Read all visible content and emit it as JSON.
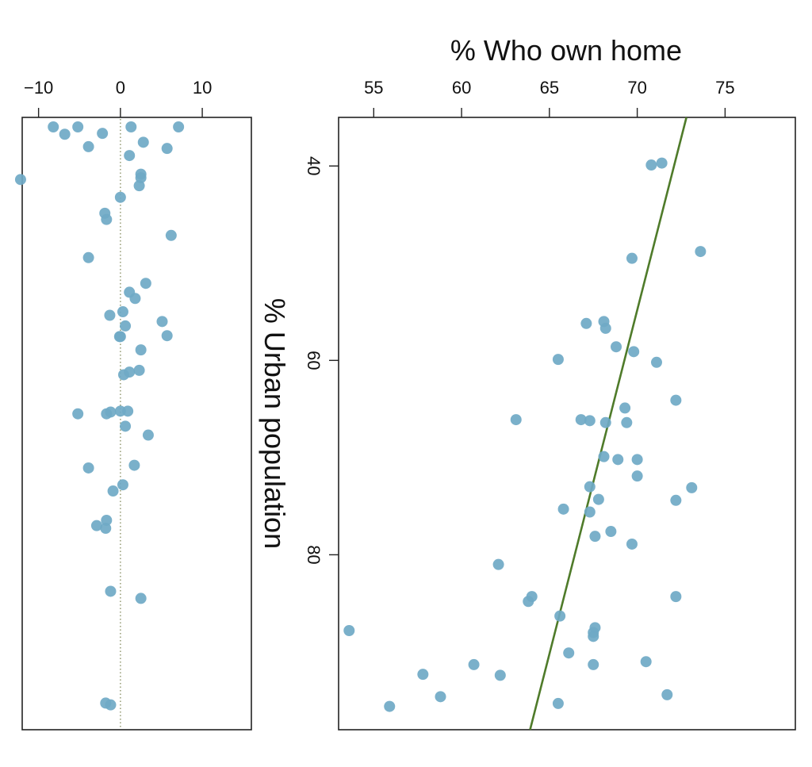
{
  "chart_data": [
    {
      "type": "scatter",
      "title": "",
      "xlabel": "",
      "ylabel": "",
      "xlim": [
        -12,
        16
      ],
      "ylim": [
        103,
        34
      ],
      "xticks": [
        "−10",
        "0",
        "10"
      ],
      "xtick_values": [
        -10,
        0,
        10
      ],
      "reference_line": {
        "value": 0,
        "style": "dotted",
        "color": "#9aa07a"
      },
      "point_color": "#6fa9c5",
      "x": [
        -1.2,
        -1.8,
        2.5,
        -1.2,
        -1.8,
        -2.9,
        -1.7,
        -0.9,
        0.3,
        -3.9,
        1.7,
        3.4,
        0.6,
        -5.2,
        -1.7,
        -1.2,
        0.0,
        0.9,
        0.4,
        1.1,
        2.3,
        2.5,
        -0.1,
        0.0,
        5.7,
        0.6,
        5.1,
        -1.3,
        0.3,
        1.8,
        1.1,
        3.1,
        -3.9,
        6.2,
        -1.7,
        -1.9,
        0.0,
        2.3,
        2.5,
        2.5,
        -12.2,
        1.1,
        5.7,
        -3.9,
        2.8,
        -6.8,
        -2.2,
        7.1,
        -5.2,
        1.3,
        -8.2
      ],
      "y": [
        36.8,
        37.0,
        48.8,
        49.6,
        56.7,
        57.0,
        57.6,
        60.9,
        61.6,
        63.5,
        63.8,
        67.2,
        68.2,
        69.6,
        69.6,
        69.8,
        69.9,
        69.9,
        74.0,
        74.3,
        74.5,
        76.8,
        78.3,
        78.3,
        78.4,
        79.5,
        80.0,
        80.7,
        81.1,
        82.6,
        83.3,
        84.3,
        87.2,
        89.7,
        91.5,
        92.2,
        94.0,
        95.3,
        96.2,
        96.6,
        96.0,
        98.7,
        99.5,
        99.7,
        100.2,
        101.1,
        101.2,
        104.2,
        104.7,
        105.1,
        105.6
      ]
    },
    {
      "type": "scatter",
      "title": "",
      "xlabel": "% Who own home",
      "ylabel": "% Urban population",
      "xlim": [
        53,
        79
      ],
      "ylim": [
        35,
        98
      ],
      "xticks": [
        "55",
        "60",
        "65",
        "70",
        "75"
      ],
      "xtick_values": [
        55,
        60,
        65,
        70,
        75
      ],
      "yticks": [
        "40",
        "60",
        "80"
      ],
      "ytick_values": [
        40,
        60,
        80
      ],
      "trend_line": {
        "points": [
          [
            72.8,
            35
          ],
          [
            63.9,
            98
          ]
        ],
        "color": "#4f7b2a"
      },
      "point_color": "#6fa9c5",
      "x": [
        70.8,
        71.4,
        73.6,
        69.7,
        68.1,
        67.1,
        68.2,
        68.8,
        69.8,
        65.5,
        71.1,
        72.2,
        69.3,
        63.1,
        66.8,
        67.3,
        68.2,
        69.4,
        68.1,
        68.9,
        70.0,
        70.0,
        67.3,
        73.1,
        72.2,
        67.8,
        65.8,
        67.3,
        68.5,
        67.6,
        69.7,
        62.1,
        72.2,
        64.0,
        63.8,
        65.6,
        67.6,
        67.5,
        67.5,
        53.6,
        66.1,
        70.5,
        60.7,
        67.5,
        57.8,
        62.2,
        58.8,
        71.7,
        55.9,
        65.5
      ],
      "y": [
        39.9,
        39.7,
        48.8,
        49.5,
        56.0,
        56.2,
        56.7,
        58.6,
        59.1,
        59.9,
        60.2,
        64.1,
        64.9,
        66.1,
        66.1,
        66.2,
        66.4,
        66.4,
        69.9,
        70.2,
        70.2,
        71.9,
        73.0,
        73.1,
        74.4,
        74.3,
        75.3,
        75.6,
        77.6,
        78.1,
        78.9,
        81.0,
        84.3,
        84.3,
        84.8,
        86.3,
        87.5,
        88.0,
        88.4,
        87.8,
        90.1,
        91.0,
        91.3,
        91.3,
        92.3,
        92.4,
        94.6,
        94.4,
        95.6,
        95.3
      ]
    }
  ]
}
